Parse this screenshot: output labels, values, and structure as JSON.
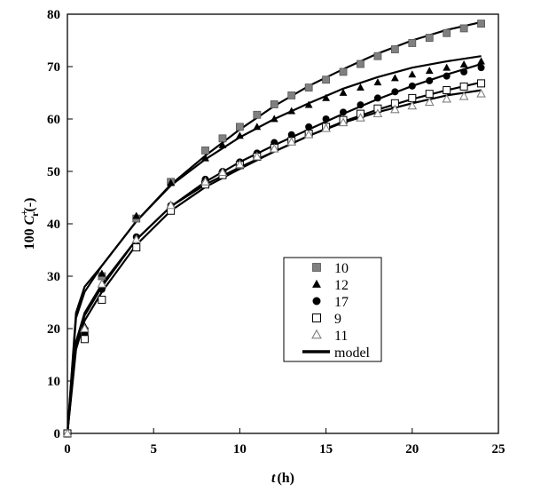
{
  "chart_data": {
    "type": "scatter",
    "xlabel_var": "t",
    "xlabel_unit": "(h)",
    "ylabel_prefix": "100 ",
    "ylabel_var": "C",
    "ylabel_sup": "+",
    "ylabel_sub": "r",
    "ylabel_suffix": "(-)",
    "xlim": [
      0,
      25
    ],
    "ylim": [
      0,
      80
    ],
    "xticks": [
      "0",
      "5",
      "10",
      "15",
      "20",
      "25"
    ],
    "yticks": [
      "0",
      "10",
      "20",
      "30",
      "40",
      "50",
      "60",
      "70",
      "80"
    ],
    "grid": false,
    "legend_position": "center-right",
    "series": [
      {
        "name": "10",
        "marker": "square-filled",
        "color": "#808080",
        "points": [
          [
            0,
            0
          ],
          [
            1,
            19.5
          ],
          [
            2,
            30
          ],
          [
            4,
            41
          ],
          [
            6,
            48
          ],
          [
            8,
            54
          ],
          [
            9,
            56.3
          ],
          [
            10,
            58.5
          ],
          [
            11,
            60.8
          ],
          [
            12,
            62.8
          ],
          [
            13,
            64.5
          ],
          [
            14,
            66
          ],
          [
            15,
            67.5
          ],
          [
            16,
            69
          ],
          [
            17,
            70.5
          ],
          [
            18,
            72
          ],
          [
            19,
            73.3
          ],
          [
            20,
            74.5
          ],
          [
            21,
            75.5
          ],
          [
            22,
            76.4
          ],
          [
            23,
            77.3
          ],
          [
            24,
            78.2
          ]
        ]
      },
      {
        "name": "12",
        "marker": "triangle-filled",
        "color": "#000000",
        "points": [
          [
            0,
            0
          ],
          [
            1,
            20.5
          ],
          [
            2,
            30.5
          ],
          [
            4,
            41.5
          ],
          [
            6,
            47.8
          ],
          [
            8,
            52.5
          ],
          [
            9,
            55
          ],
          [
            10,
            56.8
          ],
          [
            11,
            58.5
          ],
          [
            12,
            60
          ],
          [
            13,
            61.5
          ],
          [
            14,
            62.7
          ],
          [
            15,
            64
          ],
          [
            16,
            65
          ],
          [
            17,
            66
          ],
          [
            18,
            67
          ],
          [
            19,
            67.8
          ],
          [
            20,
            68.5
          ],
          [
            21,
            69.2
          ],
          [
            22,
            69.8
          ],
          [
            23,
            70.4
          ],
          [
            24,
            71
          ]
        ]
      },
      {
        "name": "17",
        "marker": "circle-filled",
        "color": "#000000",
        "points": [
          [
            0,
            0
          ],
          [
            1,
            19
          ],
          [
            2,
            27.5
          ],
          [
            4,
            37.5
          ],
          [
            6,
            43.5
          ],
          [
            8,
            48.5
          ],
          [
            9,
            50
          ],
          [
            10,
            51.8
          ],
          [
            11,
            53.5
          ],
          [
            12,
            55.5
          ],
          [
            13,
            57
          ],
          [
            14,
            58.5
          ],
          [
            15,
            60
          ],
          [
            16,
            61.3
          ],
          [
            17,
            62.7
          ],
          [
            18,
            64
          ],
          [
            19,
            65.2
          ],
          [
            20,
            66.3
          ],
          [
            21,
            67.3
          ],
          [
            22,
            68.2
          ],
          [
            23,
            69
          ],
          [
            24,
            69.8
          ]
        ]
      },
      {
        "name": "9",
        "marker": "square-open",
        "color": "#000000",
        "points": [
          [
            0,
            0
          ],
          [
            1,
            18
          ],
          [
            2,
            25.5
          ],
          [
            4,
            35.5
          ],
          [
            6,
            42.5
          ],
          [
            8,
            47.5
          ],
          [
            9,
            49.3
          ],
          [
            10,
            51.2
          ],
          [
            11,
            52.8
          ],
          [
            12,
            54.5
          ],
          [
            13,
            55.8
          ],
          [
            14,
            57.2
          ],
          [
            15,
            58.5
          ],
          [
            16,
            59.8
          ],
          [
            17,
            61
          ],
          [
            18,
            62
          ],
          [
            19,
            63
          ],
          [
            20,
            64
          ],
          [
            21,
            64.8
          ],
          [
            22,
            65.5
          ],
          [
            23,
            66.2
          ],
          [
            24,
            66.8
          ]
        ]
      },
      {
        "name": "11",
        "marker": "triangle-open",
        "color": "#808080",
        "points": [
          [
            0,
            0
          ],
          [
            1,
            20
          ],
          [
            2,
            28.5
          ],
          [
            4,
            37
          ],
          [
            6,
            43.5
          ],
          [
            8,
            48
          ],
          [
            9,
            49.8
          ],
          [
            10,
            51.3
          ],
          [
            11,
            52.8
          ],
          [
            12,
            54.3
          ],
          [
            13,
            55.6
          ],
          [
            14,
            57
          ],
          [
            15,
            58.2
          ],
          [
            16,
            59.3
          ],
          [
            17,
            60.2
          ],
          [
            18,
            61
          ],
          [
            19,
            61.8
          ],
          [
            20,
            62.5
          ],
          [
            21,
            63.2
          ],
          [
            22,
            63.8
          ],
          [
            23,
            64.3
          ],
          [
            24,
            64.8
          ]
        ]
      }
    ],
    "model": {
      "name": "model",
      "color": "#000000",
      "curves": [
        {
          "for": "10",
          "x": [
            0,
            0.5,
            1,
            2,
            4,
            6,
            8,
            10,
            12,
            14,
            16,
            18,
            20,
            22,
            24
          ],
          "y": [
            0,
            22,
            27,
            32,
            40.5,
            47.5,
            53,
            58,
            62.5,
            66.3,
            69.5,
            72.5,
            75,
            77,
            78.5
          ]
        },
        {
          "for": "12",
          "x": [
            0,
            0.5,
            1,
            2,
            4,
            6,
            8,
            10,
            12,
            14,
            16,
            18,
            20,
            22,
            24
          ],
          "y": [
            0,
            23,
            28,
            32,
            40.5,
            47.3,
            52.3,
            56.5,
            60,
            63,
            65.8,
            68,
            69.8,
            71,
            72
          ]
        },
        {
          "for": "17",
          "x": [
            0,
            0.5,
            1,
            2,
            4,
            6,
            8,
            10,
            12,
            14,
            16,
            18,
            20,
            22,
            24
          ],
          "y": [
            0,
            17,
            22.5,
            28,
            37,
            43.3,
            48,
            51.8,
            55,
            58,
            61,
            63.8,
            66.3,
            68.5,
            70.5
          ]
        },
        {
          "for": "9",
          "x": [
            0,
            0.5,
            1,
            2,
            4,
            6,
            8,
            10,
            12,
            14,
            16,
            18,
            20,
            22,
            24
          ],
          "y": [
            0,
            16,
            21.5,
            27,
            36,
            42.5,
            47,
            50.5,
            53.8,
            56.8,
            59.5,
            61.8,
            63.8,
            65.5,
            67
          ]
        },
        {
          "for": "11",
          "x": [
            0,
            0.5,
            1,
            2,
            4,
            6,
            8,
            10,
            12,
            14,
            16,
            18,
            20,
            22,
            24
          ],
          "y": [
            0,
            17.5,
            23,
            28.5,
            37,
            43.3,
            47.5,
            50.8,
            53.8,
            56.8,
            59.3,
            61.3,
            63,
            64.5,
            65.5
          ]
        }
      ]
    }
  }
}
